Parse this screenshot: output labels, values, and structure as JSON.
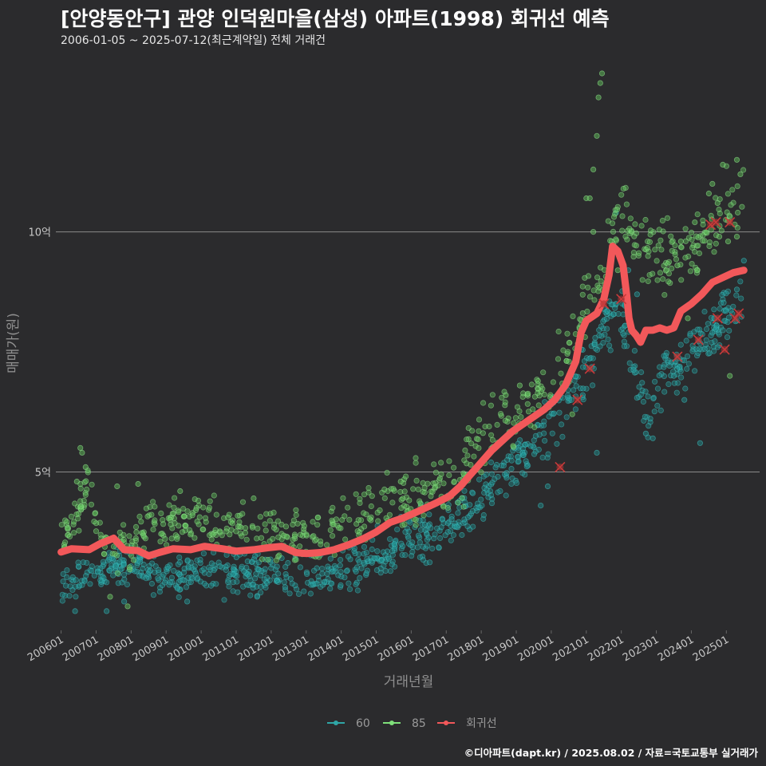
{
  "header": {
    "title": "[안양동안구] 관양 인덕원마을(삼성) 아파트(1998) 회귀선 예측",
    "subtitle": "2006-01-05 ~ 2025-07-12(최근계약일) 전체 거래건"
  },
  "caption": "©디아파트(dapt.kr) / 2025.08.02 / 자료=국토교통부 실거래가",
  "colors": {
    "background": "#2b2b2d",
    "series_60": "#2fa6a6",
    "series_85": "#7fe07a",
    "regression": "#f2585a",
    "gridline": "#8a8a8a"
  },
  "chart_data": {
    "type": "scatter",
    "title": "[안양동안구] 관양 인덕원마을(삼성) 아파트(1998) 회귀선 예측",
    "xlabel": "거래년월",
    "ylabel": "매매가(원)",
    "x_unit": "year",
    "xlim": [
      2005.85,
      2025.95
    ],
    "ylim": [
      1.7,
      13.5
    ],
    "y_unit": "억",
    "yticks": [
      {
        "value": 5,
        "label": "5억"
      },
      {
        "value": 10,
        "label": "10억"
      }
    ],
    "xticks": [
      {
        "value": 2006.0,
        "label": "200601"
      },
      {
        "value": 2007.0,
        "label": "200701"
      },
      {
        "value": 2008.0,
        "label": "200801"
      },
      {
        "value": 2009.0,
        "label": "200901"
      },
      {
        "value": 2010.0,
        "label": "201001"
      },
      {
        "value": 2011.0,
        "label": "201101"
      },
      {
        "value": 2012.0,
        "label": "201201"
      },
      {
        "value": 2013.0,
        "label": "201301"
      },
      {
        "value": 2014.0,
        "label": "201401"
      },
      {
        "value": 2015.0,
        "label": "201501"
      },
      {
        "value": 2016.0,
        "label": "201601"
      },
      {
        "value": 2017.0,
        "label": "201701"
      },
      {
        "value": 2018.0,
        "label": "201801"
      },
      {
        "value": 2019.0,
        "label": "201901"
      },
      {
        "value": 2020.0,
        "label": "202001"
      },
      {
        "value": 2021.0,
        "label": "202101"
      },
      {
        "value": 2022.0,
        "label": "202201"
      },
      {
        "value": 2023.0,
        "label": "202301"
      },
      {
        "value": 2024.0,
        "label": "202401"
      },
      {
        "value": 2025.0,
        "label": "202501"
      }
    ],
    "legend": {
      "position": "bottom",
      "entries": [
        {
          "name": "60",
          "color": "#2fa6a6"
        },
        {
          "name": "85",
          "color": "#7fe07a"
        },
        {
          "name": "회귀선",
          "color": "#f2585a"
        }
      ]
    },
    "series": [
      {
        "name": "60",
        "color": "#2fa6a6",
        "trend": [
          [
            2006.0,
            2.6
          ],
          [
            2006.5,
            2.8
          ],
          [
            2007.0,
            2.9
          ],
          [
            2007.5,
            3.0
          ],
          [
            2008.0,
            3.1
          ],
          [
            2008.5,
            2.9
          ],
          [
            2009.0,
            2.75
          ],
          [
            2009.5,
            2.85
          ],
          [
            2010.0,
            2.9
          ],
          [
            2010.5,
            2.85
          ],
          [
            2011.0,
            2.8
          ],
          [
            2011.5,
            2.85
          ],
          [
            2012.0,
            2.9
          ],
          [
            2012.5,
            2.8
          ],
          [
            2013.0,
            2.75
          ],
          [
            2013.5,
            2.85
          ],
          [
            2014.0,
            2.95
          ],
          [
            2014.5,
            3.05
          ],
          [
            2015.0,
            3.25
          ],
          [
            2015.5,
            3.4
          ],
          [
            2016.0,
            3.6
          ],
          [
            2016.5,
            3.75
          ],
          [
            2017.0,
            3.9
          ],
          [
            2017.5,
            4.1
          ],
          [
            2018.0,
            4.4
          ],
          [
            2018.5,
            4.85
          ],
          [
            2019.0,
            5.3
          ],
          [
            2019.5,
            5.6
          ],
          [
            2020.0,
            6.0
          ],
          [
            2020.5,
            6.5
          ],
          [
            2021.0,
            7.2
          ],
          [
            2021.5,
            8.0
          ],
          [
            2022.0,
            8.3
          ],
          [
            2022.8,
            6.0
          ],
          [
            2023.2,
            7.1
          ],
          [
            2023.6,
            7.3
          ],
          [
            2024.0,
            7.5
          ],
          [
            2024.5,
            7.8
          ],
          [
            2025.0,
            8.2
          ],
          [
            2025.5,
            8.6
          ]
        ],
        "extra_points": [
          [
            2021.85,
            10.4
          ],
          [
            2022.2,
            9.2
          ],
          [
            2022.45,
            8.7
          ],
          [
            2022.7,
            5.8
          ],
          [
            2022.9,
            5.7
          ],
          [
            2023.5,
            7.0
          ],
          [
            2023.8,
            6.5
          ],
          [
            2024.25,
            5.6
          ],
          [
            2024.6,
            7.9
          ],
          [
            2025.3,
            8.8
          ],
          [
            2025.5,
            9.4
          ],
          [
            2021.3,
            5.4
          ],
          [
            2020.9,
            6.6
          ],
          [
            2007.8,
            2.3
          ],
          [
            2007.3,
            2.1
          ],
          [
            2006.4,
            2.1
          ],
          [
            2009.6,
            2.3
          ],
          [
            2011.6,
            2.4
          ],
          [
            2012.4,
            2.6
          ],
          [
            2019.7,
            4.3
          ],
          [
            2019.9,
            4.7
          ]
        ]
      },
      {
        "name": "85",
        "color": "#7fe07a",
        "trend": [
          [
            2006.0,
            3.6
          ],
          [
            2006.5,
            4.2
          ],
          [
            2006.8,
            4.9
          ],
          [
            2007.0,
            3.7
          ],
          [
            2007.5,
            3.4
          ],
          [
            2008.0,
            3.5
          ],
          [
            2008.5,
            4.1
          ],
          [
            2009.0,
            3.7
          ],
          [
            2009.5,
            4.1
          ],
          [
            2010.0,
            4.05
          ],
          [
            2010.5,
            3.9
          ],
          [
            2011.0,
            3.85
          ],
          [
            2011.5,
            3.8
          ],
          [
            2012.0,
            3.75
          ],
          [
            2012.5,
            3.6
          ],
          [
            2013.0,
            3.5
          ],
          [
            2013.5,
            3.65
          ],
          [
            2014.0,
            3.8
          ],
          [
            2014.5,
            4.0
          ],
          [
            2015.0,
            4.15
          ],
          [
            2015.5,
            4.3
          ],
          [
            2016.0,
            4.45
          ],
          [
            2016.5,
            4.6
          ],
          [
            2017.0,
            4.75
          ],
          [
            2017.5,
            5.0
          ],
          [
            2018.0,
            5.6
          ],
          [
            2018.5,
            6.0
          ],
          [
            2019.0,
            6.1
          ],
          [
            2019.5,
            6.5
          ],
          [
            2020.0,
            6.8
          ],
          [
            2020.5,
            7.5
          ],
          [
            2021.0,
            8.5
          ],
          [
            2021.5,
            9.5
          ],
          [
            2021.9,
            10.5
          ],
          [
            2023.5,
            9.3
          ],
          [
            2024.0,
            9.6
          ],
          [
            2024.5,
            10.1
          ],
          [
            2025.0,
            10.4
          ],
          [
            2025.5,
            11.0
          ]
        ],
        "extra_points": [
          [
            2006.55,
            5.5
          ],
          [
            2006.6,
            5.4
          ],
          [
            2006.7,
            5.1
          ],
          [
            2006.45,
            4.8
          ],
          [
            2007.6,
            4.7
          ],
          [
            2008.2,
            4.75
          ],
          [
            2009.4,
            4.6
          ],
          [
            2011.5,
            4.45
          ],
          [
            2015.7,
            4.8
          ],
          [
            2021.45,
            13.3
          ],
          [
            2021.4,
            13.1
          ],
          [
            2021.35,
            12.8
          ],
          [
            2021.3,
            12.0
          ],
          [
            2021.2,
            11.3
          ],
          [
            2021.0,
            10.7
          ],
          [
            2021.1,
            10.7
          ],
          [
            2021.2,
            10.0
          ],
          [
            2024.6,
            11.0
          ],
          [
            2024.9,
            11.4
          ],
          [
            2025.3,
            11.5
          ],
          [
            2025.4,
            11.2
          ],
          [
            2025.05,
            9.8
          ],
          [
            2025.3,
            9.9
          ],
          [
            2025.1,
            7.0
          ],
          [
            2023.6,
            9.3
          ],
          [
            2023.7,
            9.8
          ],
          [
            2024.1,
            10.2
          ],
          [
            2024.5,
            10.8
          ],
          [
            2024.75,
            10.6
          ],
          [
            2024.8,
            9.9
          ],
          [
            2023.9,
            8.2
          ],
          [
            2021.9,
            9.2
          ],
          [
            2020.6,
            6.2
          ],
          [
            2018.7,
            6.6
          ],
          [
            2019.1,
            6.8
          ],
          [
            2007.9,
            2.2
          ],
          [
            2007.4,
            2.4
          ]
        ]
      },
      {
        "name": "회귀선",
        "color": "#f2585a",
        "points": [
          [
            2006.0,
            3.33
          ],
          [
            2006.3,
            3.4
          ],
          [
            2006.8,
            3.38
          ],
          [
            2007.1,
            3.5
          ],
          [
            2007.5,
            3.62
          ],
          [
            2007.8,
            3.38
          ],
          [
            2008.2,
            3.36
          ],
          [
            2008.5,
            3.25
          ],
          [
            2008.8,
            3.32
          ],
          [
            2009.2,
            3.4
          ],
          [
            2009.7,
            3.38
          ],
          [
            2010.1,
            3.45
          ],
          [
            2010.6,
            3.4
          ],
          [
            2011.0,
            3.35
          ],
          [
            2011.5,
            3.38
          ],
          [
            2011.9,
            3.42
          ],
          [
            2012.3,
            3.45
          ],
          [
            2012.7,
            3.32
          ],
          [
            2013.0,
            3.3
          ],
          [
            2013.4,
            3.32
          ],
          [
            2013.8,
            3.38
          ],
          [
            2014.2,
            3.48
          ],
          [
            2014.6,
            3.6
          ],
          [
            2015.0,
            3.75
          ],
          [
            2015.4,
            3.95
          ],
          [
            2015.8,
            4.05
          ],
          [
            2016.2,
            4.18
          ],
          [
            2016.7,
            4.35
          ],
          [
            2017.1,
            4.5
          ],
          [
            2017.4,
            4.7
          ],
          [
            2017.7,
            4.95
          ],
          [
            2018.0,
            5.2
          ],
          [
            2018.3,
            5.45
          ],
          [
            2018.6,
            5.65
          ],
          [
            2018.9,
            5.85
          ],
          [
            2019.2,
            6.0
          ],
          [
            2019.5,
            6.15
          ],
          [
            2019.8,
            6.3
          ],
          [
            2020.1,
            6.5
          ],
          [
            2020.4,
            6.8
          ],
          [
            2020.7,
            7.3
          ],
          [
            2020.85,
            7.9
          ],
          [
            2021.0,
            8.15
          ],
          [
            2021.3,
            8.3
          ],
          [
            2021.5,
            8.6
          ],
          [
            2021.65,
            9.1
          ],
          [
            2021.75,
            9.7
          ],
          [
            2021.9,
            9.6
          ],
          [
            2022.05,
            9.3
          ],
          [
            2022.15,
            8.7
          ],
          [
            2022.22,
            8.2
          ],
          [
            2022.3,
            7.95
          ],
          [
            2022.42,
            7.85
          ],
          [
            2022.55,
            7.7
          ],
          [
            2022.7,
            7.95
          ],
          [
            2022.9,
            7.95
          ],
          [
            2023.1,
            8.0
          ],
          [
            2023.3,
            7.95
          ],
          [
            2023.5,
            8.0
          ],
          [
            2023.7,
            8.35
          ],
          [
            2024.0,
            8.5
          ],
          [
            2024.3,
            8.7
          ],
          [
            2024.6,
            8.95
          ],
          [
            2024.9,
            9.05
          ],
          [
            2025.2,
            9.15
          ],
          [
            2025.5,
            9.2
          ]
        ],
        "predictions": [
          [
            2020.25,
            5.1
          ],
          [
            2020.75,
            6.5
          ],
          [
            2021.1,
            7.15
          ],
          [
            2021.5,
            8.5
          ],
          [
            2022.0,
            8.6
          ],
          [
            2023.6,
            7.4
          ],
          [
            2024.2,
            7.75
          ],
          [
            2024.55,
            10.15
          ],
          [
            2024.7,
            10.2
          ],
          [
            2024.75,
            8.2
          ],
          [
            2024.95,
            7.55
          ],
          [
            2025.1,
            10.2
          ],
          [
            2025.25,
            8.2
          ],
          [
            2025.35,
            8.3
          ]
        ]
      }
    ]
  }
}
